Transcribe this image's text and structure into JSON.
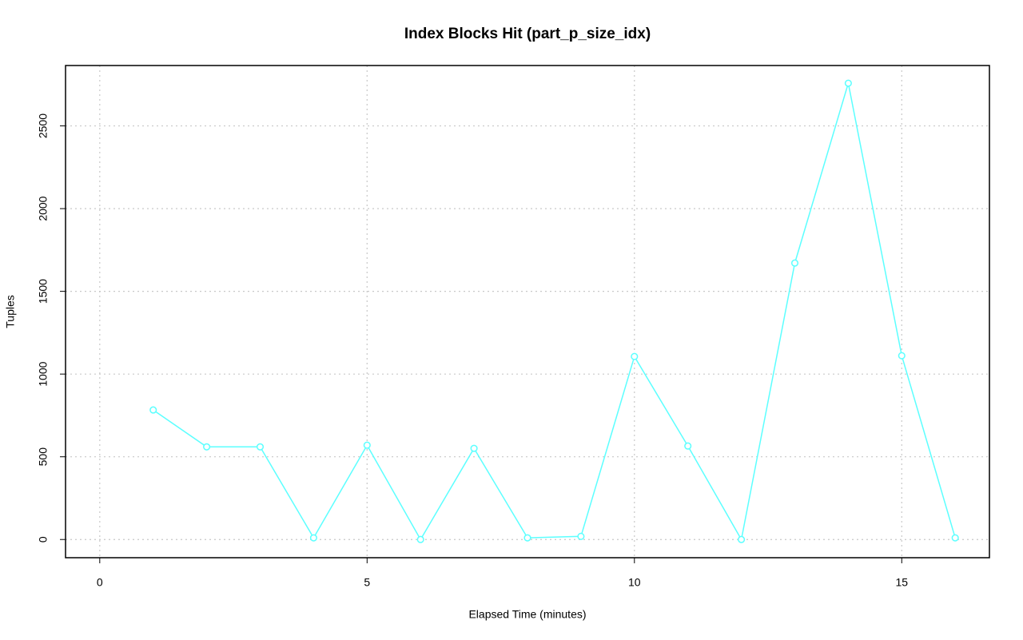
{
  "chart_data": {
    "type": "line",
    "title": "Index Blocks Hit (part_p_size_idx)",
    "x_label": "Elapsed Time (minutes)",
    "y_label": "Tuples",
    "x": [
      1,
      2,
      3,
      4,
      5,
      6,
      7,
      8,
      9,
      10,
      11,
      12,
      13,
      14,
      15,
      16
    ],
    "values": [
      783,
      560,
      560,
      10,
      570,
      0,
      551,
      10,
      19,
      1106,
      565,
      0,
      1671,
      2758,
      1111,
      10
    ],
    "color": "#5cffff",
    "xlim": [
      -0.64,
      16.64
    ],
    "ylim": [
      -110,
      2865
    ],
    "xticks": [
      0,
      5,
      10,
      15
    ],
    "yticks": [
      0,
      500,
      1000,
      1500,
      2000,
      2500
    ],
    "grid": true
  }
}
